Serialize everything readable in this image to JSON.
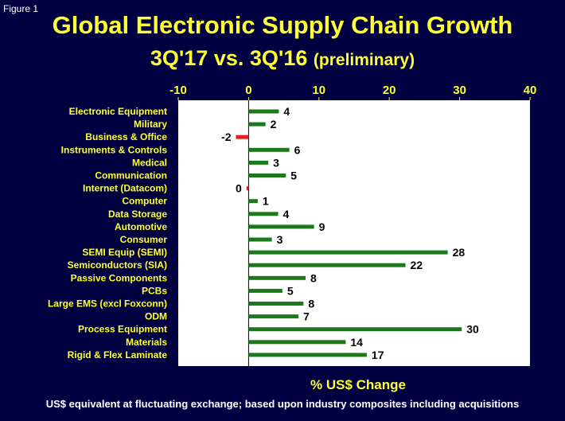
{
  "figure_label": "Figure 1",
  "colors": {
    "background": "#000040",
    "title": "#ffff33",
    "positive_bar": "#1a7a1a",
    "negative_bar": "#e02020",
    "plot_bg": "#ffffff"
  },
  "chart_data": {
    "type": "bar",
    "orientation": "horizontal",
    "title": "Global Electronic Supply Chain Growth",
    "subtitle_main": "3Q'17 vs. 3Q'16",
    "subtitle_note": "(preliminary)",
    "xlabel": "% US$ Change",
    "ylabel": "",
    "xlim": [
      -10,
      40
    ],
    "xticks": [
      -10,
      0,
      10,
      20,
      30,
      40
    ],
    "grid": false,
    "legend": "none",
    "categories": [
      "Electronic Equipment",
      "Military",
      "Business & Office",
      "Instruments & Controls",
      "Medical",
      "Communication",
      "Internet (Datacom)",
      "Computer",
      "Data Storage",
      "Automotive",
      "Consumer",
      "SEMI Equip (SEMI)",
      "Semiconductors (SIA)",
      "Passive Components",
      "PCBs",
      "Large EMS (excl Foxconn)",
      "ODM",
      "Process Equipment",
      "Materials",
      "Rigid & Flex Laminate"
    ],
    "values": [
      4.3,
      2.4,
      -1.8,
      5.8,
      2.8,
      5.3,
      -0.3,
      1.3,
      4.2,
      9.3,
      3.3,
      28.3,
      22.3,
      8.1,
      4.8,
      7.8,
      7.1,
      30.3,
      13.8,
      16.8
    ],
    "data_labels": [
      "4",
      "2",
      "-2",
      "6",
      "3",
      "5",
      "0",
      "1",
      "4",
      "9",
      "3",
      "28",
      "22",
      "8",
      "5",
      "8",
      "7",
      "30",
      "14",
      "17"
    ]
  },
  "footnote": "US$ equivalent at fluctuating exchange; based upon industry composites  including acquisitions"
}
